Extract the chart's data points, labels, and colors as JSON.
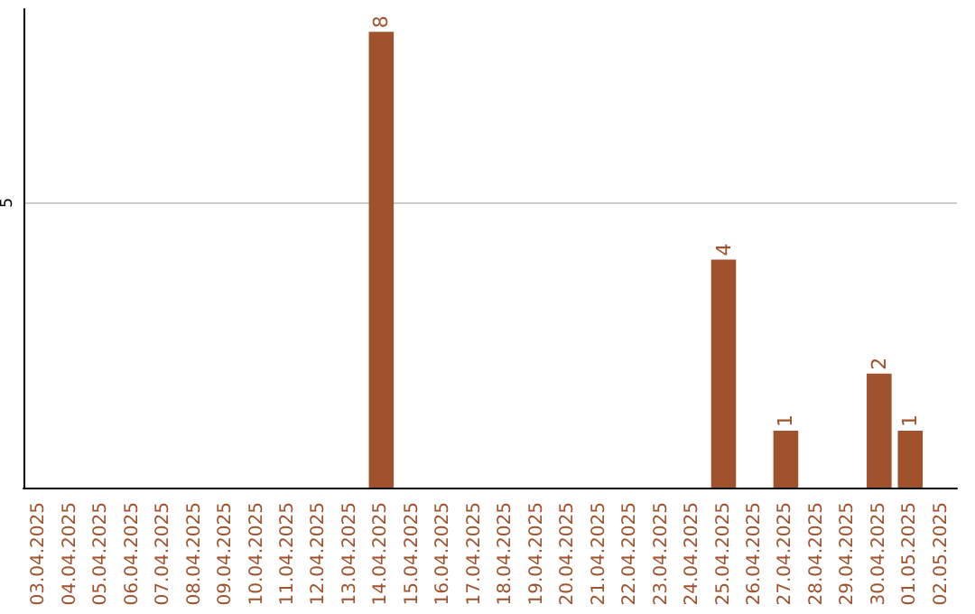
{
  "chart_data": {
    "type": "bar",
    "categories": [
      "03.04.2025",
      "04.04.2025",
      "05.04.2025",
      "06.04.2025",
      "07.04.2025",
      "08.04.2025",
      "09.04.2025",
      "10.04.2025",
      "11.04.2025",
      "12.04.2025",
      "13.04.2025",
      "14.04.2025",
      "15.04.2025",
      "16.04.2025",
      "17.04.2025",
      "18.04.2025",
      "19.04.2025",
      "20.04.2025",
      "21.04.2025",
      "22.04.2025",
      "23.04.2025",
      "24.04.2025",
      "25.04.2025",
      "26.04.2025",
      "27.04.2025",
      "28.04.2025",
      "29.04.2025",
      "30.04.2025",
      "01.05.2025",
      "02.05.2025"
    ],
    "values": [
      0,
      0,
      0,
      0,
      0,
      0,
      0,
      0,
      0,
      0,
      0,
      8,
      0,
      0,
      0,
      0,
      0,
      0,
      0,
      0,
      0,
      0,
      4,
      0,
      1,
      0,
      0,
      2,
      1,
      0
    ],
    "value_labels": [
      null,
      null,
      null,
      null,
      null,
      null,
      null,
      null,
      null,
      null,
      null,
      "8",
      null,
      null,
      null,
      null,
      null,
      null,
      null,
      null,
      null,
      null,
      "4",
      null,
      "1",
      null,
      null,
      "2",
      "1",
      null
    ],
    "color": "#a0522d",
    "ylim": [
      0,
      8.4
    ],
    "yticks": [
      5
    ],
    "grid": "y"
  }
}
